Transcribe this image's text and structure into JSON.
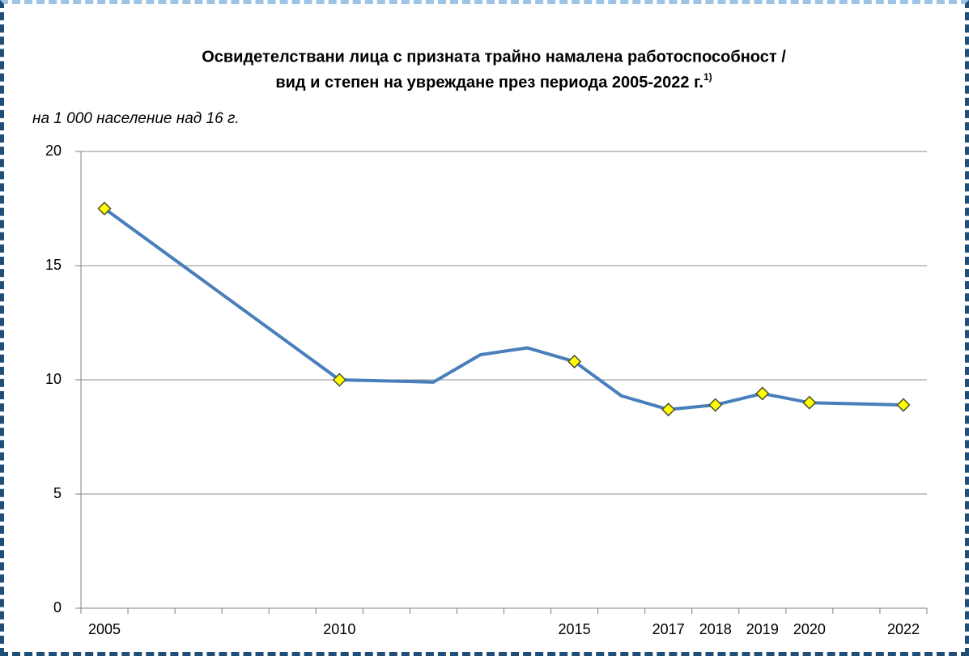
{
  "chart_data": {
    "type": "line",
    "title": [
      "Освидетелствани лица с призната трайно намалена работоспособност /",
      "вид и степен на увреждане през периода 2005-2022 г."
    ],
    "title_note": "1)",
    "subtitle": "на 1 000 население над 16 г.",
    "x": [
      2005,
      2010,
      2012,
      2013,
      2014,
      2015,
      2016,
      2017,
      2018,
      2019,
      2020,
      2022
    ],
    "series": [
      {
        "name": null,
        "color": "#4a7ebb",
        "marker_color": "#ffff00",
        "values": [
          17.5,
          10.0,
          9.9,
          11.1,
          11.4,
          10.8,
          9.3,
          8.7,
          8.9,
          9.4,
          9.0,
          8.9
        ],
        "markers": [
          true,
          true,
          false,
          false,
          false,
          true,
          false,
          true,
          true,
          true,
          true,
          true
        ]
      }
    ],
    "xlim": [
      2004.5,
      2022.5
    ],
    "xticks": [
      2005,
      2010,
      2015,
      2017,
      2018,
      2019,
      2020,
      2022
    ],
    "ylim": [
      0,
      20
    ],
    "yticks": [
      0,
      5,
      10,
      15,
      20
    ],
    "grid": true
  }
}
